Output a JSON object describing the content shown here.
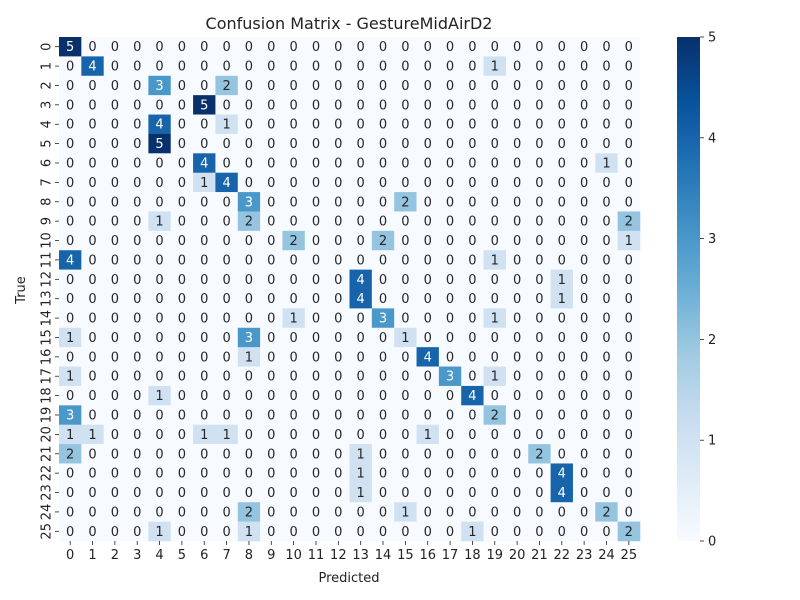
{
  "chart_data": {
    "type": "heatmap",
    "title": "Confusion Matrix - GestureMidAirD2",
    "xlabel": "Predicted",
    "ylabel": "True",
    "x_labels": [
      "0",
      "1",
      "2",
      "3",
      "4",
      "5",
      "6",
      "7",
      "8",
      "9",
      "10",
      "11",
      "12",
      "13",
      "14",
      "15",
      "16",
      "17",
      "18",
      "19",
      "20",
      "21",
      "22",
      "23",
      "24",
      "25"
    ],
    "y_labels": [
      "0",
      "1",
      "2",
      "3",
      "4",
      "5",
      "6",
      "7",
      "8",
      "9",
      "10",
      "11",
      "12",
      "13",
      "14",
      "15",
      "16",
      "17",
      "18",
      "19",
      "20",
      "21",
      "22",
      "23",
      "24",
      "25"
    ],
    "colorbar": {
      "min": 0,
      "max": 5,
      "ticks": [
        "0",
        "1",
        "2",
        "3",
        "4",
        "5"
      ]
    },
    "colormap": "Blues",
    "matrix": [
      [
        5,
        0,
        0,
        0,
        0,
        0,
        0,
        0,
        0,
        0,
        0,
        0,
        0,
        0,
        0,
        0,
        0,
        0,
        0,
        0,
        0,
        0,
        0,
        0,
        0,
        0
      ],
      [
        0,
        4,
        0,
        0,
        0,
        0,
        0,
        0,
        0,
        0,
        0,
        0,
        0,
        0,
        0,
        0,
        0,
        0,
        0,
        1,
        0,
        0,
        0,
        0,
        0,
        0
      ],
      [
        0,
        0,
        0,
        0,
        3,
        0,
        0,
        2,
        0,
        0,
        0,
        0,
        0,
        0,
        0,
        0,
        0,
        0,
        0,
        0,
        0,
        0,
        0,
        0,
        0,
        0
      ],
      [
        0,
        0,
        0,
        0,
        0,
        0,
        5,
        0,
        0,
        0,
        0,
        0,
        0,
        0,
        0,
        0,
        0,
        0,
        0,
        0,
        0,
        0,
        0,
        0,
        0,
        0
      ],
      [
        0,
        0,
        0,
        0,
        4,
        0,
        0,
        1,
        0,
        0,
        0,
        0,
        0,
        0,
        0,
        0,
        0,
        0,
        0,
        0,
        0,
        0,
        0,
        0,
        0,
        0
      ],
      [
        0,
        0,
        0,
        0,
        5,
        0,
        0,
        0,
        0,
        0,
        0,
        0,
        0,
        0,
        0,
        0,
        0,
        0,
        0,
        0,
        0,
        0,
        0,
        0,
        0,
        0
      ],
      [
        0,
        0,
        0,
        0,
        0,
        0,
        4,
        0,
        0,
        0,
        0,
        0,
        0,
        0,
        0,
        0,
        0,
        0,
        0,
        0,
        0,
        0,
        0,
        0,
        1,
        0
      ],
      [
        0,
        0,
        0,
        0,
        0,
        0,
        1,
        4,
        0,
        0,
        0,
        0,
        0,
        0,
        0,
        0,
        0,
        0,
        0,
        0,
        0,
        0,
        0,
        0,
        0,
        0
      ],
      [
        0,
        0,
        0,
        0,
        0,
        0,
        0,
        0,
        3,
        0,
        0,
        0,
        0,
        0,
        0,
        2,
        0,
        0,
        0,
        0,
        0,
        0,
        0,
        0,
        0,
        0
      ],
      [
        0,
        0,
        0,
        0,
        1,
        0,
        0,
        0,
        2,
        0,
        0,
        0,
        0,
        0,
        0,
        0,
        0,
        0,
        0,
        0,
        0,
        0,
        0,
        0,
        0,
        2
      ],
      [
        0,
        0,
        0,
        0,
        0,
        0,
        0,
        0,
        0,
        0,
        2,
        0,
        0,
        0,
        2,
        0,
        0,
        0,
        0,
        0,
        0,
        0,
        0,
        0,
        0,
        1
      ],
      [
        4,
        0,
        0,
        0,
        0,
        0,
        0,
        0,
        0,
        0,
        0,
        0,
        0,
        0,
        0,
        0,
        0,
        0,
        0,
        1,
        0,
        0,
        0,
        0,
        0,
        0
      ],
      [
        0,
        0,
        0,
        0,
        0,
        0,
        0,
        0,
        0,
        0,
        0,
        0,
        0,
        4,
        0,
        0,
        0,
        0,
        0,
        0,
        0,
        0,
        1,
        0,
        0,
        0
      ],
      [
        0,
        0,
        0,
        0,
        0,
        0,
        0,
        0,
        0,
        0,
        0,
        0,
        0,
        4,
        0,
        0,
        0,
        0,
        0,
        0,
        0,
        0,
        1,
        0,
        0,
        0
      ],
      [
        0,
        0,
        0,
        0,
        0,
        0,
        0,
        0,
        0,
        0,
        1,
        0,
        0,
        0,
        3,
        0,
        0,
        0,
        0,
        1,
        0,
        0,
        0,
        0,
        0,
        0
      ],
      [
        1,
        0,
        0,
        0,
        0,
        0,
        0,
        0,
        3,
        0,
        0,
        0,
        0,
        0,
        0,
        1,
        0,
        0,
        0,
        0,
        0,
        0,
        0,
        0,
        0,
        0
      ],
      [
        0,
        0,
        0,
        0,
        0,
        0,
        0,
        0,
        1,
        0,
        0,
        0,
        0,
        0,
        0,
        0,
        4,
        0,
        0,
        0,
        0,
        0,
        0,
        0,
        0,
        0
      ],
      [
        1,
        0,
        0,
        0,
        0,
        0,
        0,
        0,
        0,
        0,
        0,
        0,
        0,
        0,
        0,
        0,
        0,
        3,
        0,
        1,
        0,
        0,
        0,
        0,
        0,
        0
      ],
      [
        0,
        0,
        0,
        0,
        1,
        0,
        0,
        0,
        0,
        0,
        0,
        0,
        0,
        0,
        0,
        0,
        0,
        0,
        4,
        0,
        0,
        0,
        0,
        0,
        0,
        0
      ],
      [
        3,
        0,
        0,
        0,
        0,
        0,
        0,
        0,
        0,
        0,
        0,
        0,
        0,
        0,
        0,
        0,
        0,
        0,
        0,
        2,
        0,
        0,
        0,
        0,
        0,
        0
      ],
      [
        1,
        1,
        0,
        0,
        0,
        0,
        1,
        1,
        0,
        0,
        0,
        0,
        0,
        0,
        0,
        0,
        1,
        0,
        0,
        0,
        0,
        0,
        0,
        0,
        0,
        0
      ],
      [
        2,
        0,
        0,
        0,
        0,
        0,
        0,
        0,
        0,
        0,
        0,
        0,
        0,
        1,
        0,
        0,
        0,
        0,
        0,
        0,
        0,
        2,
        0,
        0,
        0,
        0
      ],
      [
        0,
        0,
        0,
        0,
        0,
        0,
        0,
        0,
        0,
        0,
        0,
        0,
        0,
        1,
        0,
        0,
        0,
        0,
        0,
        0,
        0,
        0,
        4,
        0,
        0,
        0
      ],
      [
        0,
        0,
        0,
        0,
        0,
        0,
        0,
        0,
        0,
        0,
        0,
        0,
        0,
        1,
        0,
        0,
        0,
        0,
        0,
        0,
        0,
        0,
        4,
        0,
        0,
        0
      ],
      [
        0,
        0,
        0,
        0,
        0,
        0,
        0,
        0,
        2,
        0,
        0,
        0,
        0,
        0,
        0,
        1,
        0,
        0,
        0,
        0,
        0,
        0,
        0,
        0,
        2,
        0
      ],
      [
        0,
        0,
        0,
        0,
        1,
        0,
        0,
        0,
        1,
        0,
        0,
        0,
        0,
        0,
        0,
        0,
        0,
        0,
        1,
        0,
        0,
        0,
        0,
        0,
        0,
        2
      ]
    ]
  }
}
